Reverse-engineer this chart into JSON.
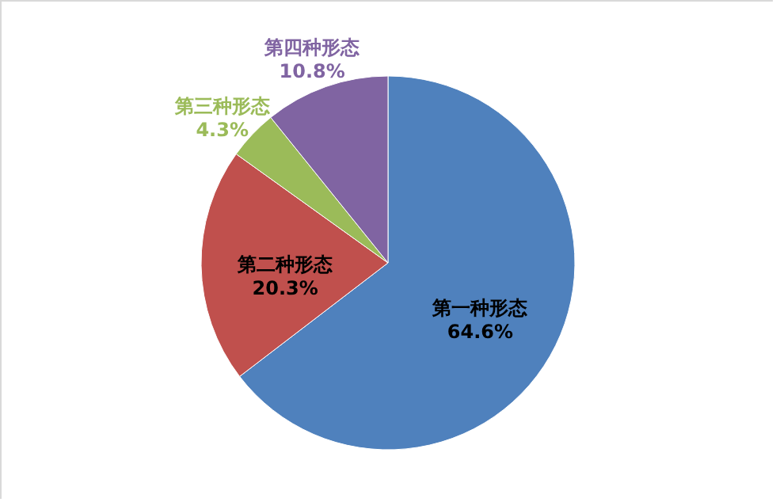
{
  "chart_data": {
    "type": "pie",
    "categories": [
      "第一种形态",
      "第二种形态",
      "第三种形态",
      "第四种形态"
    ],
    "values": [
      64.6,
      20.3,
      4.3,
      10.8
    ],
    "colors": [
      "#4f81bd",
      "#c0504d",
      "#9bbb59",
      "#8064a2"
    ],
    "value_labels": [
      "64.6%",
      "20.3%",
      "4.3%",
      "10.8%"
    ]
  }
}
